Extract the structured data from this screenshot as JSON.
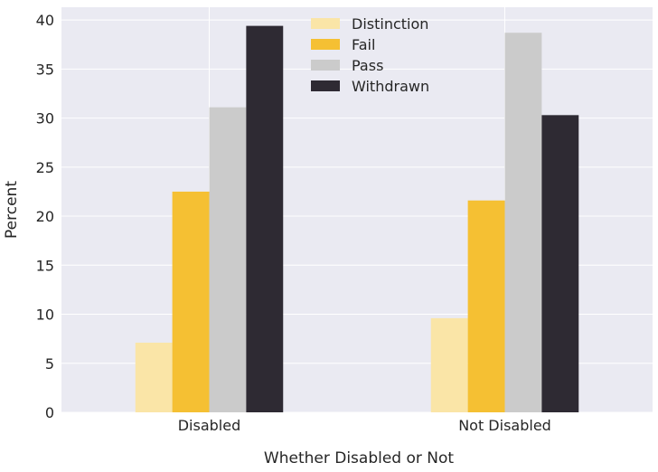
{
  "chart_data": {
    "type": "bar",
    "categories": [
      "Disabled",
      "Not Disabled"
    ],
    "series": [
      {
        "name": "Distinction",
        "values": [
          7.1,
          9.6
        ],
        "color": "#fae5a7"
      },
      {
        "name": "Fail",
        "values": [
          22.5,
          21.6
        ],
        "color": "#f5c033"
      },
      {
        "name": "Pass",
        "values": [
          31.1,
          38.7
        ],
        "color": "#cbcbcb"
      },
      {
        "name": "Withdrawn",
        "values": [
          39.4,
          30.3
        ],
        "color": "#2e2a33"
      }
    ],
    "title": "",
    "xlabel": "Whether Disabled or Not",
    "ylabel": "Percent",
    "ylim": [
      0,
      41.3
    ],
    "yticks": [
      0,
      5,
      10,
      15,
      20,
      25,
      30,
      35,
      40
    ],
    "grid": true,
    "legend_position": "top-center",
    "background_color": "#eaeaf2",
    "grid_color": "#ffffff"
  }
}
